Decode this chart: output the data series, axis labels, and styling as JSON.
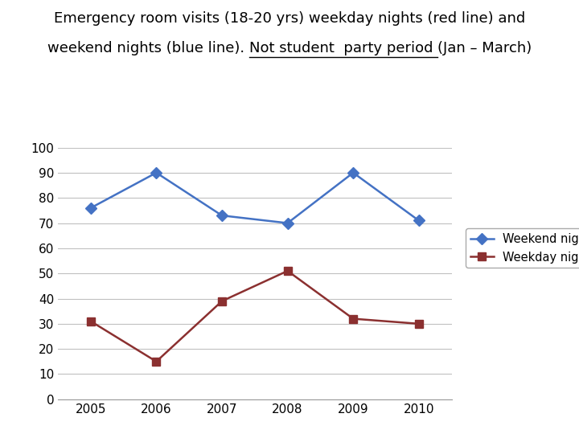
{
  "years": [
    2005,
    2006,
    2007,
    2008,
    2009,
    2010
  ],
  "weekend_nights": [
    76,
    90,
    73,
    70,
    90,
    71
  ],
  "weekday_nights": [
    31,
    15,
    39,
    51,
    32,
    30
  ],
  "weekend_color": "#4472C4",
  "weekday_color": "#8B3030",
  "ylim": [
    0,
    100
  ],
  "yticks": [
    0,
    10,
    20,
    30,
    40,
    50,
    60,
    70,
    80,
    90,
    100
  ],
  "title_line1": "Emergency room visits (18-20 yrs) weekday nights (red line) and",
  "title_line2_plain": "weekend nights (blue line). ",
  "title_line2_underline": "Not student  party period ",
  "title_line2_end": "(Jan – March)",
  "legend_weekend": "Weekend nights",
  "legend_weekday": "Weekday nights",
  "bg_color": "#FFFFFF",
  "grid_color": "#C0C0C0",
  "marker_size": 7,
  "linewidth": 1.8,
  "title_fontsize": 13.0,
  "legend_fontsize": 10.5,
  "tick_fontsize": 11
}
